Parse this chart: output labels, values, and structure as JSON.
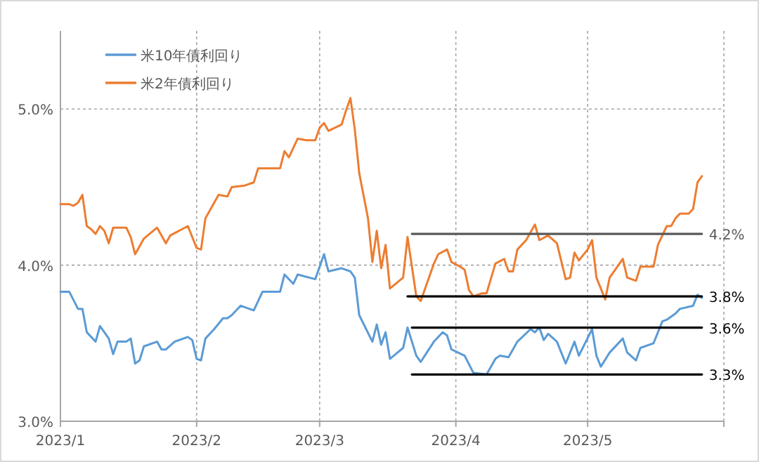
{
  "chart_data": {
    "type": "line",
    "xlim": [
      "2023-01-01",
      "2023-06-01"
    ],
    "xticks": [
      {
        "value": "2023-01",
        "label": "2023/1"
      },
      {
        "value": "2023-02",
        "label": "2023/2"
      },
      {
        "value": "2023-03",
        "label": "2023/3"
      },
      {
        "value": "2023-04",
        "label": "2023/4"
      },
      {
        "value": "2023-05",
        "label": "2023/5"
      },
      {
        "value": "2023-06",
        "label": null
      }
    ],
    "ylim": [
      3,
      5.5
    ],
    "yticks": [
      {
        "value": 3,
        "label": "3.0%"
      },
      {
        "value": 4,
        "label": "4.0%"
      },
      {
        "value": 5,
        "label": "5.0%"
      }
    ],
    "grid": true,
    "legend": "top left",
    "series": [
      {
        "name": "米10年債利回り",
        "color": "#5b9bd5",
        "x": [
          "2023-01-01",
          "2023-01-03",
          "2023-01-05",
          "2023-01-06",
          "2023-01-07",
          "2023-01-08",
          "2023-01-09",
          "2023-01-10",
          "2023-01-12",
          "2023-01-13",
          "2023-01-14",
          "2023-01-16",
          "2023-01-17",
          "2023-01-18",
          "2023-01-19",
          "2023-01-20",
          "2023-01-23",
          "2023-01-24",
          "2023-01-25",
          "2023-01-27",
          "2023-01-30",
          "2023-01-31",
          "2023-02-01",
          "2023-02-02",
          "2023-02-03",
          "2023-02-05",
          "2023-02-07",
          "2023-02-08",
          "2023-02-09",
          "2023-02-11",
          "2023-02-14",
          "2023-02-16",
          "2023-02-20",
          "2023-02-21",
          "2023-02-23",
          "2023-02-24",
          "2023-02-28",
          "2023-03-02",
          "2023-03-03",
          "2023-03-06",
          "2023-03-08",
          "2023-03-09",
          "2023-03-10",
          "2023-03-13",
          "2023-03-14",
          "2023-03-15",
          "2023-03-16",
          "2023-03-17",
          "2023-03-20",
          "2023-03-21",
          "2023-03-23",
          "2023-03-24",
          "2023-03-27",
          "2023-03-29",
          "2023-03-30",
          "2023-03-31",
          "2023-04-03",
          "2023-04-05",
          "2023-04-08",
          "2023-04-10",
          "2023-04-11",
          "2023-04-13",
          "2023-04-15",
          "2023-04-18",
          "2023-04-19",
          "2023-04-20",
          "2023-04-21",
          "2023-04-22",
          "2023-04-24",
          "2023-04-26",
          "2023-04-28",
          "2023-04-29",
          "2023-05-02",
          "2023-05-03",
          "2023-05-04",
          "2023-05-06",
          "2023-05-09",
          "2023-05-10",
          "2023-05-12",
          "2023-05-13",
          "2023-05-16",
          "2023-05-18",
          "2023-05-19",
          "2023-05-21",
          "2023-05-22",
          "2023-05-25",
          "2023-05-26",
          "2023-05-27"
        ],
        "values": [
          3.83,
          3.83,
          3.72,
          3.72,
          3.57,
          3.54,
          3.51,
          3.61,
          3.53,
          3.43,
          3.51,
          3.51,
          3.53,
          3.37,
          3.39,
          3.48,
          3.51,
          3.46,
          3.46,
          3.51,
          3.54,
          3.52,
          3.4,
          3.39,
          3.53,
          3.59,
          3.66,
          3.66,
          3.68,
          3.74,
          3.71,
          3.83,
          3.83,
          3.94,
          3.88,
          3.94,
          3.91,
          4.07,
          3.96,
          3.98,
          3.96,
          3.92,
          3.68,
          3.51,
          3.62,
          3.49,
          3.57,
          3.4,
          3.47,
          3.6,
          3.42,
          3.38,
          3.51,
          3.57,
          3.55,
          3.46,
          3.42,
          3.31,
          3.3,
          3.4,
          3.42,
          3.41,
          3.51,
          3.59,
          3.57,
          3.6,
          3.52,
          3.56,
          3.51,
          3.37,
          3.51,
          3.42,
          3.59,
          3.42,
          3.35,
          3.44,
          3.53,
          3.44,
          3.39,
          3.47,
          3.5,
          3.64,
          3.65,
          3.69,
          3.72,
          3.74,
          3.81,
          3.79
        ]
      },
      {
        "name": "米2年債利回り",
        "color": "#ed7d31",
        "x": [
          "2023-01-01",
          "2023-01-03",
          "2023-01-04",
          "2023-01-05",
          "2023-01-06",
          "2023-01-07",
          "2023-01-08",
          "2023-01-09",
          "2023-01-10",
          "2023-01-11",
          "2023-01-12",
          "2023-01-13",
          "2023-01-16",
          "2023-01-17",
          "2023-01-18",
          "2023-01-20",
          "2023-01-23",
          "2023-01-25",
          "2023-01-26",
          "2023-01-30",
          "2023-02-01",
          "2023-02-02",
          "2023-02-03",
          "2023-02-06",
          "2023-02-08",
          "2023-02-09",
          "2023-02-12",
          "2023-02-14",
          "2023-02-15",
          "2023-02-17",
          "2023-02-20",
          "2023-02-21",
          "2023-02-22",
          "2023-02-24",
          "2023-02-26",
          "2023-02-28",
          "2023-03-01",
          "2023-03-02",
          "2023-03-03",
          "2023-03-06",
          "2023-03-07",
          "2023-03-08",
          "2023-03-09",
          "2023-03-10",
          "2023-03-12",
          "2023-03-13",
          "2023-03-14",
          "2023-03-15",
          "2023-03-16",
          "2023-03-17",
          "2023-03-20",
          "2023-03-21",
          "2023-03-23",
          "2023-03-24",
          "2023-03-27",
          "2023-03-28",
          "2023-03-30",
          "2023-03-31",
          "2023-04-02",
          "2023-04-03",
          "2023-04-04",
          "2023-04-05",
          "2023-04-07",
          "2023-04-08",
          "2023-04-10",
          "2023-04-12",
          "2023-04-13",
          "2023-04-14",
          "2023-04-15",
          "2023-04-17",
          "2023-04-19",
          "2023-04-20",
          "2023-04-22",
          "2023-04-24",
          "2023-04-26",
          "2023-04-27",
          "2023-04-28",
          "2023-04-29",
          "2023-05-01",
          "2023-05-02",
          "2023-05-03",
          "2023-05-05",
          "2023-05-06",
          "2023-05-09",
          "2023-05-10",
          "2023-05-12",
          "2023-05-13",
          "2023-05-16",
          "2023-05-17",
          "2023-05-19",
          "2023-05-20",
          "2023-05-21",
          "2023-05-22",
          "2023-05-24",
          "2023-05-25",
          "2023-05-26",
          "2023-05-27"
        ],
        "values": [
          4.39,
          4.39,
          4.38,
          4.4,
          4.45,
          4.25,
          4.23,
          4.2,
          4.25,
          4.22,
          4.14,
          4.24,
          4.24,
          4.18,
          4.07,
          4.17,
          4.24,
          4.14,
          4.19,
          4.25,
          4.11,
          4.1,
          4.3,
          4.45,
          4.44,
          4.5,
          4.51,
          4.53,
          4.62,
          4.62,
          4.62,
          4.73,
          4.69,
          4.81,
          4.8,
          4.8,
          4.88,
          4.91,
          4.86,
          4.9,
          4.99,
          5.07,
          4.87,
          4.59,
          4.3,
          4.02,
          4.22,
          3.98,
          4.13,
          3.85,
          3.92,
          4.18,
          3.8,
          3.77,
          4.01,
          4.07,
          4.1,
          4.02,
          3.99,
          3.97,
          3.84,
          3.8,
          3.82,
          3.82,
          4.01,
          4.04,
          3.96,
          3.96,
          4.1,
          4.16,
          4.26,
          4.16,
          4.19,
          4.14,
          3.91,
          3.92,
          4.08,
          4.03,
          4.1,
          4.16,
          3.92,
          3.78,
          3.92,
          4.04,
          3.92,
          3.9,
          3.99,
          3.99,
          4.13,
          4.25,
          4.25,
          4.3,
          4.33,
          4.33,
          4.36,
          4.53,
          4.57
        ]
      },
      {
        "type": "line",
        "name": "4.2%",
        "color": "#595959",
        "x": [
          "2023-03-22",
          "2023-05-27"
        ],
        "values": [
          4.2,
          4.2
        ]
      },
      {
        "type": "line",
        "name": "3.8%",
        "color": "#000000",
        "x": [
          "2023-03-21",
          "2023-05-27"
        ],
        "values": [
          3.8,
          3.8
        ]
      },
      {
        "type": "line",
        "name": "3.6%",
        "color": "#000000",
        "x": [
          "2023-03-22",
          "2023-05-27"
        ],
        "values": [
          3.6,
          3.6
        ]
      },
      {
        "type": "line",
        "name": "3.3%",
        "color": "#000000",
        "x": [
          "2023-03-22",
          "2023-05-27"
        ],
        "values": [
          3.3,
          3.3
        ]
      }
    ]
  }
}
